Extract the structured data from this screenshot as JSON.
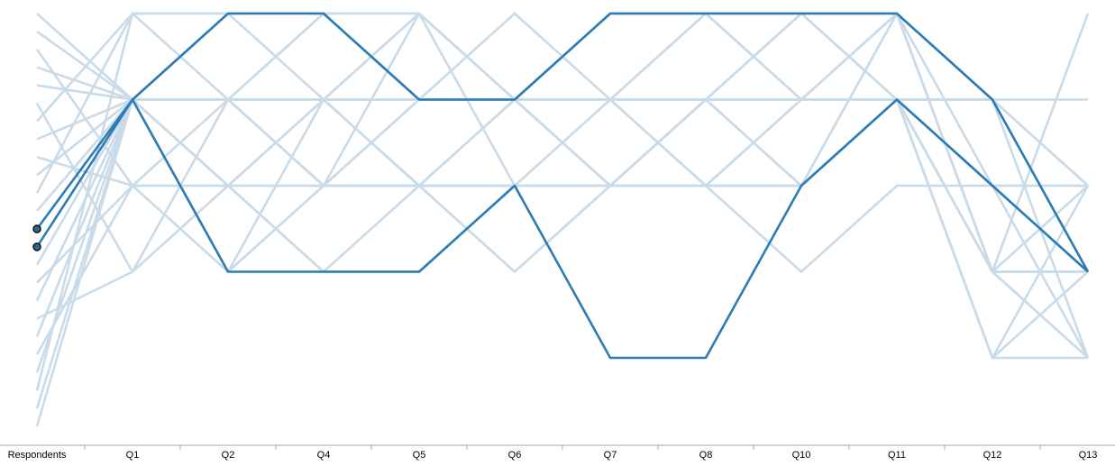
{
  "chart_data": {
    "type": "parallel-coordinates",
    "title": "",
    "axes": [
      "Respondents",
      "Q1",
      "Q2",
      "Q4",
      "Q5",
      "Q6",
      "Q7",
      "Q8",
      "Q10",
      "Q11",
      "Q12",
      "Q13"
    ],
    "respondents": 24,
    "question_scale": [
      1,
      5
    ],
    "series": [
      {
        "respondent": 1,
        "values": [
          4,
          4,
          4,
          3,
          2,
          3,
          4,
          3,
          4,
          1,
          1
        ],
        "highlighted": false
      },
      {
        "respondent": 2,
        "values": [
          4,
          5,
          5,
          4,
          4,
          5,
          5,
          5,
          5,
          4,
          2
        ],
        "highlighted": false
      },
      {
        "respondent": 3,
        "values": [
          3,
          4,
          3,
          3,
          3,
          3,
          3,
          2,
          3,
          3,
          3
        ],
        "highlighted": false
      },
      {
        "respondent": 4,
        "values": [
          4,
          2,
          3,
          3,
          3,
          3,
          4,
          4,
          4,
          4,
          4
        ],
        "highlighted": false
      },
      {
        "respondent": 5,
        "values": [
          4,
          3,
          4,
          5,
          4,
          4,
          4,
          4,
          4,
          1,
          2
        ],
        "highlighted": false
      },
      {
        "respondent": 6,
        "values": [
          2,
          3,
          2,
          2,
          3,
          3,
          3,
          4,
          5,
          3,
          2
        ],
        "highlighted": false
      },
      {
        "respondent": 7,
        "values": [
          5,
          5,
          4,
          4,
          4,
          4,
          5,
          5,
          5,
          4,
          3
        ],
        "highlighted": false
      },
      {
        "respondent": 8,
        "values": [
          4,
          4,
          5,
          5,
          4,
          3,
          3,
          4,
          4,
          3,
          1
        ],
        "highlighted": false
      },
      {
        "respondent": 9,
        "values": [
          3,
          3,
          3,
          4,
          4,
          4,
          3,
          3,
          4,
          4,
          3
        ],
        "highlighted": false
      },
      {
        "respondent": 10,
        "values": [
          4,
          4,
          4,
          4,
          4,
          5,
          5,
          4,
          4,
          2,
          2
        ],
        "highlighted": false
      },
      {
        "respondent": 11,
        "values": [
          5,
          4,
          3,
          5,
          4,
          4,
          4,
          5,
          4,
          3,
          3
        ],
        "highlighted": false
      },
      {
        "respondent": 12,
        "values": [
          4,
          2,
          4,
          3,
          2,
          3,
          4,
          3,
          5,
          2,
          1
        ],
        "highlighted": false
      },
      {
        "respondent": 13,
        "values": [
          4,
          5,
          5,
          4,
          4,
          5,
          5,
          5,
          5,
          4,
          2
        ],
        "highlighted": true
      },
      {
        "respondent": 14,
        "values": [
          4,
          2,
          2,
          2,
          3,
          1,
          1,
          3,
          4,
          3,
          2
        ],
        "highlighted": true
      },
      {
        "respondent": 15,
        "values": [
          4,
          4,
          3,
          3,
          3,
          4,
          4,
          4,
          4,
          2,
          3
        ],
        "highlighted": false
      },
      {
        "respondent": 16,
        "values": [
          3,
          2,
          3,
          4,
          4,
          3,
          4,
          5,
          5,
          2,
          2
        ],
        "highlighted": false
      },
      {
        "respondent": 17,
        "values": [
          4,
          3,
          2,
          3,
          4,
          4,
          4,
          4,
          4,
          4,
          1
        ],
        "highlighted": false
      },
      {
        "respondent": 18,
        "values": [
          2,
          4,
          4,
          3,
          3,
          3,
          3,
          3,
          4,
          2,
          2
        ],
        "highlighted": false
      },
      {
        "respondent": 19,
        "values": [
          4,
          4,
          5,
          4,
          5,
          4,
          5,
          4,
          5,
          2,
          2
        ],
        "highlighted": false
      },
      {
        "respondent": 20,
        "values": [
          3,
          3,
          4,
          4,
          4,
          3,
          4,
          4,
          4,
          1,
          3
        ],
        "highlighted": false
      },
      {
        "respondent": 21,
        "values": [
          4,
          4,
          4,
          5,
          4,
          5,
          5,
          5,
          4,
          4,
          2
        ],
        "highlighted": false
      },
      {
        "respondent": 22,
        "values": [
          5,
          5,
          5,
          5,
          3,
          3,
          3,
          3,
          5,
          2,
          5
        ],
        "highlighted": false
      },
      {
        "respondent": 23,
        "values": [
          4,
          3,
          3,
          3,
          4,
          4,
          3,
          3,
          4,
          2,
          1
        ],
        "highlighted": false
      },
      {
        "respondent": 24,
        "values": [
          4,
          4,
          4,
          4,
          4,
          4,
          4,
          4,
          4,
          3,
          2
        ],
        "highlighted": false
      }
    ],
    "colors": {
      "line": "#c9dbe8",
      "highlight": "#2a7bb6",
      "dot_fill": "#2f6690",
      "dot_stroke": "#111111",
      "axis": "#aaaaaa"
    },
    "grid": false,
    "legend": "none"
  }
}
